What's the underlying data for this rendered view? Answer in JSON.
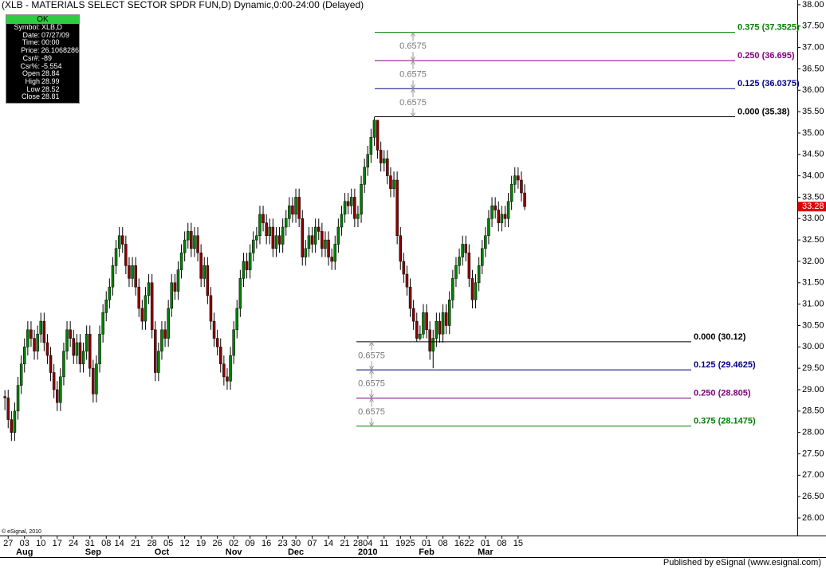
{
  "chart_data": {
    "type": "candlestick",
    "title": "(XLB - MATERIALS SELECT SECTOR SPDR FUN,D) Dynamic,0:00-24:00 (Delayed)",
    "copyright": "© eSignal, 2010",
    "footer": "Published by eSignal (www.esignal.com)",
    "up_color": "#008000",
    "down_color": "#8b0000",
    "open": [
      28.84,
      28.81,
      28.3,
      28.0,
      28.5,
      29.1,
      29.6,
      30.0,
      30.4,
      30.2,
      29.9,
      30.3,
      30.6,
      30.1,
      29.8,
      29.4,
      29.0,
      28.7,
      29.3,
      29.9,
      30.4,
      30.2,
      29.8,
      30.1,
      29.6,
      29.9,
      30.3,
      29.5,
      28.9,
      29.6,
      30.3,
      30.8,
      31.1,
      31.4,
      31.9,
      32.3,
      32.6,
      32.4,
      31.9,
      31.6,
      31.9,
      31.4,
      30.9,
      30.6,
      31.2,
      31.5,
      30.4,
      29.4,
      29.9,
      30.4,
      30.2,
      30.9,
      31.5,
      31.3,
      31.8,
      32.2,
      32.5,
      32.7,
      32.3,
      32.6,
      32.2,
      31.6,
      31.9,
      31.2,
      30.6,
      30.2,
      30.0,
      29.6,
      29.3,
      29.2,
      29.8,
      30.4,
      30.9,
      31.6,
      32.0,
      31.8,
      32.2,
      32.5,
      32.6,
      33.1,
      32.9,
      32.6,
      32.8,
      32.3,
      32.6,
      32.4,
      32.8,
      33.0,
      33.3,
      33.1,
      33.5,
      33.0,
      32.1,
      32.3,
      32.6,
      32.4,
      32.8,
      32.7,
      32.3,
      32.5,
      32.1,
      32.0,
      32.4,
      32.8,
      33.1,
      33.4,
      33.3,
      33.5,
      33.0,
      33.1,
      33.8,
      34.2,
      34.5,
      34.9,
      35.3,
      34.6,
      34.3,
      34.4,
      34.0,
      33.7,
      33.9,
      32.6,
      32.0,
      31.7,
      31.4,
      30.9,
      30.6,
      30.2,
      30.3,
      30.8,
      30.4,
      29.9,
      30.2,
      30.6,
      30.3,
      30.8,
      30.5,
      31.1,
      31.6,
      31.9,
      32.1,
      32.4,
      32.2,
      31.6,
      31.1,
      31.5,
      31.9,
      32.3,
      32.6,
      33.0,
      33.3,
      33.2,
      32.9,
      33.1,
      33.0,
      33.4,
      33.8,
      34.0,
      33.9,
      33.6
    ],
    "high": [
      28.99,
      29.0,
      28.5,
      28.7,
      29.3,
      29.8,
      30.2,
      30.6,
      30.6,
      30.4,
      30.5,
      30.8,
      30.8,
      30.3,
      30.0,
      29.6,
      29.2,
      29.5,
      30.1,
      30.6,
      30.6,
      30.4,
      30.3,
      30.3,
      30.1,
      30.5,
      30.5,
      29.7,
      29.8,
      30.5,
      31.0,
      31.3,
      31.6,
      32.1,
      32.5,
      32.8,
      32.8,
      32.6,
      32.1,
      32.1,
      32.1,
      31.6,
      31.1,
      31.4,
      31.7,
      31.7,
      30.6,
      30.1,
      30.6,
      30.6,
      31.1,
      31.7,
      31.7,
      32.0,
      32.4,
      32.7,
      32.9,
      32.9,
      32.8,
      32.8,
      32.4,
      32.1,
      32.1,
      31.4,
      30.8,
      30.4,
      30.2,
      29.8,
      29.5,
      30.0,
      30.6,
      31.1,
      31.8,
      32.2,
      32.2,
      32.4,
      32.7,
      32.8,
      33.3,
      33.3,
      33.1,
      33.0,
      33.0,
      32.8,
      32.8,
      33.0,
      33.2,
      33.5,
      33.5,
      33.7,
      33.7,
      33.2,
      32.5,
      32.8,
      32.8,
      33.0,
      33.0,
      32.9,
      32.7,
      32.7,
      32.3,
      32.6,
      33.0,
      33.3,
      33.6,
      33.6,
      33.7,
      33.7,
      33.3,
      34.0,
      34.4,
      34.7,
      35.1,
      35.38,
      35.3,
      34.8,
      34.6,
      34.6,
      34.2,
      34.1,
      34.1,
      32.8,
      32.2,
      31.9,
      31.6,
      31.1,
      30.8,
      30.5,
      31.0,
      31.0,
      30.6,
      30.4,
      30.8,
      30.8,
      31.0,
      31.0,
      31.3,
      31.8,
      32.1,
      32.3,
      32.6,
      32.6,
      32.4,
      31.8,
      31.7,
      32.1,
      32.5,
      32.8,
      33.2,
      33.5,
      33.5,
      33.4,
      33.3,
      33.3,
      33.6,
      34.0,
      34.2,
      34.2,
      34.1,
      33.8
    ],
    "low": [
      28.52,
      28.1,
      27.8,
      27.8,
      28.3,
      28.9,
      29.4,
      29.8,
      30.0,
      29.7,
      29.7,
      30.1,
      29.9,
      29.6,
      29.2,
      28.8,
      28.5,
      28.5,
      29.1,
      29.7,
      30.0,
      29.6,
      29.6,
      29.4,
      29.4,
      29.7,
      29.3,
      28.7,
      28.7,
      29.4,
      30.1,
      30.6,
      30.9,
      31.2,
      31.7,
      32.1,
      32.2,
      31.7,
      31.4,
      31.4,
      31.2,
      30.7,
      30.4,
      30.4,
      31.0,
      30.2,
      29.2,
      29.2,
      29.7,
      30.0,
      30.0,
      30.7,
      31.1,
      31.1,
      31.6,
      32.0,
      32.3,
      32.1,
      32.1,
      32.0,
      31.4,
      31.4,
      31.0,
      30.4,
      30.0,
      29.8,
      29.4,
      29.1,
      29.0,
      29.0,
      29.6,
      30.2,
      30.7,
      31.4,
      31.6,
      31.6,
      32.0,
      32.3,
      32.4,
      32.7,
      32.4,
      32.4,
      32.1,
      32.1,
      32.2,
      32.2,
      32.6,
      32.8,
      32.9,
      32.9,
      32.8,
      31.9,
      31.9,
      32.1,
      32.2,
      32.2,
      32.5,
      32.1,
      32.1,
      31.9,
      31.8,
      31.8,
      32.2,
      32.6,
      32.9,
      33.1,
      33.1,
      32.8,
      32.8,
      32.9,
      33.6,
      34.0,
      34.3,
      34.7,
      34.4,
      34.1,
      34.1,
      33.8,
      33.5,
      33.5,
      32.4,
      31.8,
      31.5,
      31.2,
      30.7,
      30.4,
      30.12,
      30.15,
      30.2,
      30.2,
      29.7,
      29.5,
      30.0,
      30.1,
      30.1,
      30.3,
      30.3,
      30.9,
      31.4,
      31.7,
      31.9,
      32.0,
      31.4,
      30.9,
      30.9,
      31.3,
      31.7,
      32.1,
      32.4,
      32.8,
      33.0,
      32.7,
      32.7,
      32.8,
      32.8,
      33.2,
      33.6,
      33.7,
      33.4,
      33.2
    ],
    "close": [
      28.81,
      28.3,
      28.0,
      28.5,
      29.1,
      29.6,
      30.0,
      30.4,
      30.2,
      29.9,
      30.3,
      30.6,
      30.1,
      29.8,
      29.4,
      29.0,
      28.7,
      29.3,
      29.9,
      30.4,
      30.2,
      29.8,
      30.1,
      29.6,
      29.9,
      30.3,
      29.5,
      28.9,
      29.6,
      30.3,
      30.8,
      31.1,
      31.4,
      31.9,
      32.3,
      32.6,
      32.4,
      31.9,
      31.6,
      31.9,
      31.4,
      30.9,
      30.6,
      31.2,
      31.5,
      30.4,
      29.4,
      29.9,
      30.4,
      30.2,
      30.9,
      31.5,
      31.3,
      31.8,
      32.2,
      32.5,
      32.7,
      32.3,
      32.6,
      32.2,
      31.6,
      31.9,
      31.2,
      30.6,
      30.2,
      30.0,
      29.6,
      29.3,
      29.2,
      29.8,
      30.4,
      30.9,
      31.6,
      32.0,
      31.8,
      32.2,
      32.5,
      32.6,
      33.1,
      32.9,
      32.6,
      32.8,
      32.3,
      32.6,
      32.4,
      32.8,
      33.0,
      33.3,
      33.1,
      33.5,
      33.0,
      32.1,
      32.3,
      32.6,
      32.4,
      32.8,
      32.7,
      32.3,
      32.5,
      32.1,
      32.0,
      32.4,
      32.8,
      33.1,
      33.4,
      33.3,
      33.5,
      33.0,
      33.1,
      33.8,
      34.2,
      34.5,
      34.9,
      35.3,
      34.6,
      34.3,
      34.4,
      34.0,
      33.7,
      33.9,
      32.6,
      32.0,
      31.7,
      31.4,
      30.9,
      30.6,
      30.2,
      30.3,
      30.8,
      30.4,
      29.9,
      30.2,
      30.6,
      30.3,
      30.8,
      30.5,
      31.1,
      31.6,
      31.9,
      32.1,
      32.4,
      32.2,
      31.6,
      31.1,
      31.5,
      31.9,
      32.3,
      32.6,
      33.0,
      33.3,
      33.2,
      32.9,
      33.1,
      33.0,
      33.4,
      33.8,
      34.0,
      33.9,
      33.6,
      33.28
    ],
    "xlim": [
      -1.5,
      242.4
    ],
    "xticks": [
      {
        "value": 1,
        "label": "27"
      },
      {
        "value": 6,
        "label": "03"
      },
      {
        "value": 11,
        "label": "10"
      },
      {
        "value": 16,
        "label": "17"
      },
      {
        "value": 21,
        "label": "24"
      },
      {
        "value": 26,
        "label": "31"
      },
      {
        "value": 31,
        "label": "08"
      },
      {
        "value": 35,
        "label": "14"
      },
      {
        "value": 40,
        "label": "21"
      },
      {
        "value": 45,
        "label": "28"
      },
      {
        "value": 50,
        "label": "05"
      },
      {
        "value": 55,
        "label": "12"
      },
      {
        "value": 60,
        "label": "19"
      },
      {
        "value": 65,
        "label": "26"
      },
      {
        "value": 70,
        "label": "02"
      },
      {
        "value": 75,
        "label": "09"
      },
      {
        "value": 80,
        "label": "16"
      },
      {
        "value": 85,
        "label": "23"
      },
      {
        "value": 89,
        "label": "30"
      },
      {
        "value": 94,
        "label": "07"
      },
      {
        "value": 99,
        "label": "14"
      },
      {
        "value": 104,
        "label": "21"
      },
      {
        "value": 108,
        "label": "28"
      },
      {
        "value": 111,
        "label": "04"
      },
      {
        "value": 116,
        "label": "11"
      },
      {
        "value": 121,
        "label": "19"
      },
      {
        "value": 124,
        "label": "25"
      },
      {
        "value": 129,
        "label": "01"
      },
      {
        "value": 134,
        "label": "08"
      },
      {
        "value": 139,
        "label": "16"
      },
      {
        "value": 142,
        "label": "22"
      },
      {
        "value": 147,
        "label": "01"
      },
      {
        "value": 152,
        "label": "08"
      },
      {
        "value": 157,
        "label": "15"
      }
    ],
    "month_ticks": [
      {
        "value": 6,
        "label": "Aug"
      },
      {
        "value": 27,
        "label": "Sep"
      },
      {
        "value": 48,
        "label": "Oct"
      },
      {
        "value": 70,
        "label": "Nov"
      },
      {
        "value": 89,
        "label": "Dec"
      },
      {
        "value": 111,
        "label": "2010"
      },
      {
        "value": 129,
        "label": "Feb"
      },
      {
        "value": 147,
        "label": "Mar"
      }
    ],
    "ylim": [
      25.59,
      38.11
    ],
    "yticks": [
      {
        "value": 26,
        "label": "26.00"
      },
      {
        "value": 26.5,
        "label": "26.50"
      },
      {
        "value": 27,
        "label": "27.00"
      },
      {
        "value": 27.5,
        "label": "27.50"
      },
      {
        "value": 28,
        "label": "28.00"
      },
      {
        "value": 28.5,
        "label": "28.50"
      },
      {
        "value": 29,
        "label": "29.00"
      },
      {
        "value": 29.5,
        "label": "29.50"
      },
      {
        "value": 30,
        "label": "30.00"
      },
      {
        "value": 30.5,
        "label": "30.50"
      },
      {
        "value": 31,
        "label": "31.00"
      },
      {
        "value": 31.5,
        "label": "31.50"
      },
      {
        "value": 32,
        "label": "32.00"
      },
      {
        "value": 32.5,
        "label": "32.50"
      },
      {
        "value": 33,
        "label": "33.00"
      },
      {
        "value": 33.5,
        "label": "33.50"
      },
      {
        "value": 34,
        "label": "34.00"
      },
      {
        "value": 34.5,
        "label": "34.50"
      },
      {
        "value": 35,
        "label": "35.00"
      },
      {
        "value": 35.5,
        "label": "35.50"
      },
      {
        "value": 36,
        "label": "36.00"
      },
      {
        "value": 36.5,
        "label": "36.50"
      },
      {
        "value": 37,
        "label": "37.00"
      },
      {
        "value": 37.5,
        "label": "37.50"
      },
      {
        "value": 38,
        "label": "38.00"
      }
    ],
    "last_price_color": "#e00000",
    "fib_sets": [
      {
        "levels": [
          {
            "value": 35.38,
            "label": "0.000 (35.38)",
            "color": "#000000"
          },
          {
            "value": 36.0375,
            "label": "0.125 (36.0375)",
            "color": "#000080"
          },
          {
            "value": 36.695,
            "label": "0.250 (36.695)",
            "color": "#800080"
          },
          {
            "value": 37.3525,
            "label": "0.375 (37.3525)",
            "color": "#008000"
          }
        ],
        "steps": [
          0.6575,
          0.6575,
          0.6575
        ]
      },
      {
        "levels": [
          {
            "value": 30.12,
            "label": "0.000 (30.12)",
            "color": "#000000"
          },
          {
            "value": 29.4625,
            "label": "0.125 (29.4625)",
            "color": "#000080"
          },
          {
            "value": 28.805,
            "label": "0.250 (28.805)",
            "color": "#800080"
          },
          {
            "value": 28.1475,
            "label": "0.375 (28.1475)",
            "color": "#008000"
          }
        ],
        "steps": [
          0.6575,
          0.6575,
          0.6575
        ]
      }
    ]
  },
  "info_box": {
    "status": "OK",
    "rows": [
      [
        "Symbol:",
        "XLB,D"
      ],
      [
        "Date:",
        "07/27/09"
      ],
      [
        "Time:",
        "00:00"
      ],
      [
        "Price:",
        "26.1068286"
      ],
      [
        "Csr#:",
        "-89"
      ],
      [
        "Csr%:",
        "-5.554"
      ],
      [
        "Open",
        "28.84"
      ],
      [
        "High",
        "28.99"
      ],
      [
        "Low",
        "28.52"
      ],
      [
        "Close",
        "28.81"
      ]
    ]
  }
}
